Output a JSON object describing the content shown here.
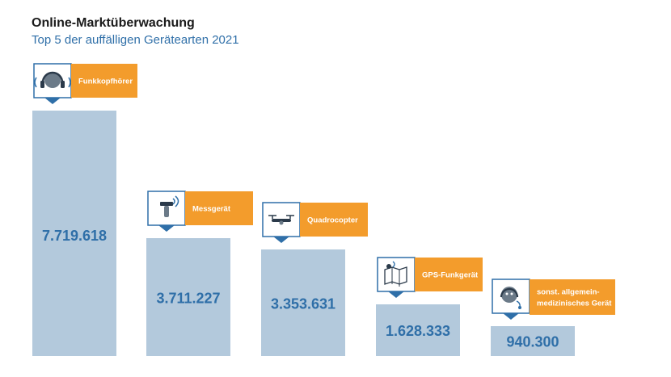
{
  "title": "Online-Marktüberwachung",
  "subtitle": "Top 5 der auffälligen Gerätearten 2021",
  "colors": {
    "bar": "#b3c9dc",
    "value_text": "#2f6fa8",
    "label_bg": "#f39c2c",
    "icon_border": "#2f6fa8",
    "icon_stroke": "#2b3a4a"
  },
  "chart_data": {
    "type": "bar",
    "categories": [
      "Funkkopfhörer",
      "Messgerät",
      "Quadrocopter",
      "GPS-Funkgerät",
      "sonst. allgemein-medizinisches Gerät"
    ],
    "category_label_lines": [
      [
        "Funkkopfhörer"
      ],
      [
        "Messgerät"
      ],
      [
        "Quadrocopter"
      ],
      [
        "GPS-Funkgerät"
      ],
      [
        "sonst. allgemein-",
        "medizinisches Gerät"
      ]
    ],
    "values": [
      7719618,
      3711227,
      3353631,
      1628333,
      940300
    ],
    "value_labels": [
      "7.719.618",
      "3.711.227",
      "3.353.631",
      "1.628.333",
      "940.300"
    ],
    "icons": [
      "headphones-icon",
      "measuring-device-icon",
      "drone-icon",
      "gps-map-icon",
      "medical-head-icon"
    ]
  }
}
